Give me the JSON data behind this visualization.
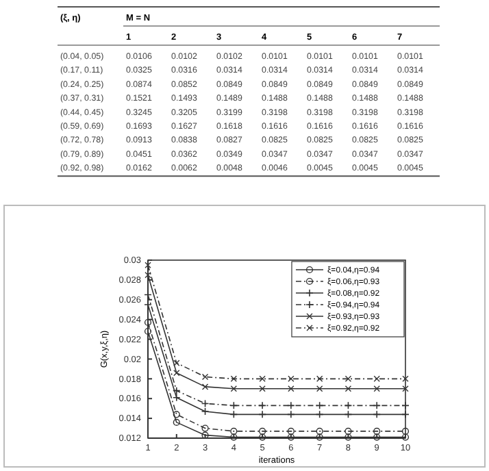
{
  "chart_data": [
    {
      "type": "heatmap",
      "title": "M = N",
      "ylabel": "(ξ, η)",
      "categories": [
        "1",
        "2",
        "3",
        "4",
        "5",
        "6",
        "7"
      ],
      "y_categories": [
        "(0.04, 0.05)",
        "(0.17, 0.11)",
        "(0.24, 0.25)",
        "(0.37, 0.31)",
        "(0.44, 0.45)",
        "(0.59, 0.69)",
        "(0.72, 0.78)",
        "(0.79, 0.89)",
        "(0.92, 0.98)"
      ],
      "cells": [
        [
          0.0106,
          0.0102,
          0.0102,
          0.0101,
          0.0101,
          0.0101,
          0.0101
        ],
        [
          0.0325,
          0.0316,
          0.0314,
          0.0314,
          0.0314,
          0.0314,
          0.0314
        ],
        [
          0.0874,
          0.0852,
          0.0849,
          0.0849,
          0.0849,
          0.0849,
          0.0849
        ],
        [
          0.1521,
          0.1493,
          0.1489,
          0.1488,
          0.1488,
          0.1488,
          0.1488
        ],
        [
          0.3245,
          0.3205,
          0.3199,
          0.3198,
          0.3198,
          0.3198,
          0.3198
        ],
        [
          0.1693,
          0.1627,
          0.1618,
          0.1616,
          0.1616,
          0.1616,
          0.1616
        ],
        [
          0.0913,
          0.0838,
          0.0827,
          0.0825,
          0.0825,
          0.0825,
          0.0825
        ],
        [
          0.0451,
          0.0362,
          0.0349,
          0.0347,
          0.0347,
          0.0347,
          0.0347
        ],
        [
          0.0162,
          0.0062,
          0.0048,
          0.0046,
          0.0045,
          0.0045,
          0.0045
        ]
      ],
      "data_labels": true
    },
    {
      "type": "line",
      "xlabel": "iterations",
      "ylabel": "G(x,y,ξ,η)",
      "x": [
        1,
        2,
        3,
        4,
        5,
        6,
        7,
        8,
        9,
        10
      ],
      "xlim": [
        1,
        10
      ],
      "xticks": [
        1,
        2,
        3,
        4,
        5,
        6,
        7,
        8,
        9,
        10
      ],
      "ylim": [
        0.012,
        0.03
      ],
      "yticks": [
        0.012,
        0.014,
        0.016,
        0.018,
        0.02,
        0.022,
        0.024,
        0.026,
        0.028,
        0.03
      ],
      "legend": "top right",
      "series": [
        {
          "name": "ξ=0.04,η=0.94",
          "color": "#333333",
          "marker": "circle",
          "line_style": "solid",
          "values": [
            0.0228,
            0.0136,
            0.0123,
            0.0121,
            0.0121,
            0.0121,
            0.0121,
            0.0121,
            0.0121,
            0.0121
          ]
        },
        {
          "name": "ξ=0.06,η=0.93",
          "color": "#333333",
          "marker": "circle",
          "line_style": "dashdot",
          "values": [
            0.0237,
            0.0144,
            0.013,
            0.0127,
            0.0127,
            0.0127,
            0.0127,
            0.0127,
            0.0127,
            0.0127
          ]
        },
        {
          "name": "ξ=0.08,η=0.92",
          "color": "#333333",
          "marker": "plus",
          "line_style": "solid",
          "values": [
            0.0255,
            0.0161,
            0.0147,
            0.0144,
            0.0144,
            0.0144,
            0.0144,
            0.0144,
            0.0144,
            0.0144
          ]
        },
        {
          "name": "ξ=0.94,η=0.94",
          "color": "#333333",
          "marker": "plus",
          "line_style": "dashdot",
          "values": [
            0.0265,
            0.0168,
            0.0155,
            0.0153,
            0.0153,
            0.0153,
            0.0153,
            0.0153,
            0.0153,
            0.0153
          ]
        },
        {
          "name": "ξ=0.93,η=0.93",
          "color": "#333333",
          "marker": "cross",
          "line_style": "solid",
          "values": [
            0.0285,
            0.0186,
            0.0172,
            0.017,
            0.017,
            0.017,
            0.017,
            0.017,
            0.017,
            0.017
          ]
        },
        {
          "name": "ξ=0.92,η=0.92",
          "color": "#333333",
          "marker": "cross",
          "line_style": "dashdot",
          "values": [
            0.0295,
            0.0196,
            0.0182,
            0.018,
            0.018,
            0.018,
            0.018,
            0.018,
            0.018,
            0.018
          ]
        }
      ]
    }
  ]
}
